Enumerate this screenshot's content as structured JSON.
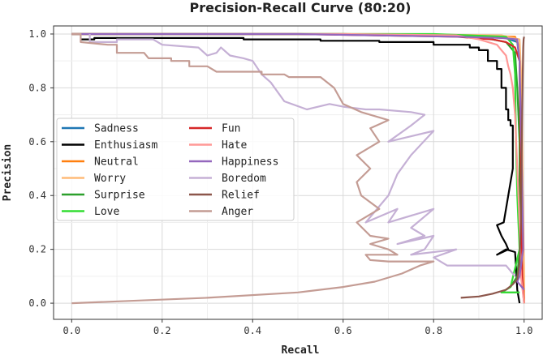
{
  "chart_data": {
    "type": "line",
    "title": "Precision-Recall Curve (80:20)",
    "xlabel": "Recall",
    "ylabel": "Precision",
    "xlim": [
      -0.04,
      1.04
    ],
    "ylim": [
      -0.06,
      1.03
    ],
    "xticks": [
      "0.0",
      "0.2",
      "0.4",
      "0.6",
      "0.8",
      "1.0"
    ],
    "yticks": [
      "0.0",
      "0.2",
      "0.4",
      "0.6",
      "0.8",
      "1.0"
    ],
    "grid": true,
    "legend_position": "center-left",
    "series": [
      {
        "name": "Sadness",
        "color": "#1f77b4",
        "points": [
          [
            0.0,
            1.0
          ],
          [
            0.5,
            1.0
          ],
          [
            0.8,
            0.995
          ],
          [
            0.95,
            0.99
          ],
          [
            0.985,
            0.97
          ],
          [
            0.99,
            0.9
          ],
          [
            0.992,
            0.5
          ],
          [
            0.993,
            0.2
          ],
          [
            0.994,
            0.1
          ],
          [
            1.0,
            0.0
          ]
        ]
      },
      {
        "name": "Enthusiasm",
        "color": "#000000",
        "points": [
          [
            0.02,
            0.98
          ],
          [
            0.05,
            0.98
          ],
          [
            0.05,
            0.985
          ],
          [
            0.38,
            0.985
          ],
          [
            0.38,
            0.98
          ],
          [
            0.55,
            0.98
          ],
          [
            0.55,
            0.975
          ],
          [
            0.68,
            0.975
          ],
          [
            0.68,
            0.97
          ],
          [
            0.8,
            0.97
          ],
          [
            0.8,
            0.96
          ],
          [
            0.88,
            0.96
          ],
          [
            0.88,
            0.95
          ],
          [
            0.9,
            0.95
          ],
          [
            0.9,
            0.94
          ],
          [
            0.92,
            0.94
          ],
          [
            0.92,
            0.9
          ],
          [
            0.94,
            0.9
          ],
          [
            0.94,
            0.87
          ],
          [
            0.95,
            0.87
          ],
          [
            0.95,
            0.8
          ],
          [
            0.96,
            0.8
          ],
          [
            0.96,
            0.72
          ],
          [
            0.965,
            0.72
          ],
          [
            0.965,
            0.68
          ],
          [
            0.97,
            0.68
          ],
          [
            0.97,
            0.66
          ],
          [
            0.975,
            0.66
          ],
          [
            0.975,
            0.5
          ],
          [
            0.97,
            0.45
          ],
          [
            0.965,
            0.4
          ],
          [
            0.96,
            0.35
          ],
          [
            0.955,
            0.3
          ],
          [
            0.94,
            0.29
          ],
          [
            0.95,
            0.25
          ],
          [
            0.96,
            0.22
          ],
          [
            0.965,
            0.2
          ],
          [
            0.94,
            0.18
          ],
          [
            0.96,
            0.2
          ],
          [
            0.98,
            0.19
          ],
          [
            0.985,
            0.05
          ],
          [
            0.99,
            0.0
          ]
        ]
      },
      {
        "name": "Neutral",
        "color": "#ff7f0e",
        "points": [
          [
            0.0,
            1.0
          ],
          [
            0.6,
            1.0
          ],
          [
            0.9,
            0.995
          ],
          [
            0.98,
            0.99
          ],
          [
            0.99,
            0.95
          ],
          [
            0.995,
            0.6
          ],
          [
            0.998,
            0.3
          ],
          [
            1.0,
            0.05
          ],
          [
            1.0,
            0.0
          ]
        ]
      },
      {
        "name": "Worry",
        "color": "#ffbb78",
        "points": [
          [
            0.0,
            1.0
          ],
          [
            0.7,
            1.0
          ],
          [
            0.95,
            0.995
          ],
          [
            0.99,
            0.98
          ],
          [
            0.995,
            0.8
          ],
          [
            0.997,
            0.4
          ],
          [
            0.999,
            0.1
          ],
          [
            1.0,
            0.0
          ]
        ]
      },
      {
        "name": "Surprise",
        "color": "#2ca02c",
        "points": [
          [
            0.0,
            1.0
          ],
          [
            0.6,
            1.0
          ],
          [
            0.9,
            0.99
          ],
          [
            0.96,
            0.97
          ],
          [
            0.98,
            0.93
          ],
          [
            0.985,
            0.8
          ],
          [
            0.99,
            0.6
          ],
          [
            0.99,
            0.2
          ],
          [
            0.985,
            0.1
          ],
          [
            0.97,
            0.06
          ],
          [
            0.95,
            0.04
          ],
          [
            0.99,
            0.04
          ]
        ]
      },
      {
        "name": "Love",
        "color": "#33dd33",
        "points": [
          [
            0.0,
            1.0
          ],
          [
            0.8,
            1.0
          ],
          [
            0.96,
            0.99
          ],
          [
            0.975,
            0.96
          ],
          [
            0.98,
            0.85
          ],
          [
            0.982,
            0.6
          ],
          [
            0.985,
            0.4
          ],
          [
            0.99,
            0.2
          ],
          [
            0.97,
            0.06
          ],
          [
            0.95,
            0.04
          ],
          [
            0.99,
            0.04
          ]
        ]
      },
      {
        "name": "Fun",
        "color": "#d62728",
        "points": [
          [
            0.0,
            1.0
          ],
          [
            0.5,
            1.0
          ],
          [
            0.85,
            0.99
          ],
          [
            0.93,
            0.98
          ],
          [
            0.96,
            0.97
          ],
          [
            0.98,
            0.95
          ],
          [
            0.99,
            0.9
          ],
          [
            0.992,
            0.6
          ],
          [
            0.993,
            0.4
          ],
          [
            0.995,
            0.2
          ],
          [
            0.996,
            0.1
          ],
          [
            1.0,
            0.0
          ]
        ]
      },
      {
        "name": "Hate",
        "color": "#ff9896",
        "points": [
          [
            0.0,
            1.0
          ],
          [
            0.6,
            1.0
          ],
          [
            0.85,
            0.995
          ],
          [
            0.9,
            0.98
          ],
          [
            0.94,
            0.96
          ],
          [
            0.95,
            0.94
          ],
          [
            0.96,
            0.92
          ],
          [
            0.965,
            0.88
          ],
          [
            0.97,
            0.85
          ],
          [
            0.975,
            0.8
          ],
          [
            0.98,
            0.7
          ],
          [
            0.985,
            0.5
          ],
          [
            0.99,
            0.3
          ],
          [
            0.993,
            0.1
          ],
          [
            1.0,
            0.0
          ]
        ]
      },
      {
        "name": "Happiness",
        "color": "#9467bd",
        "points": [
          [
            0.0,
            1.0
          ],
          [
            0.5,
            1.0
          ],
          [
            0.85,
            0.99
          ],
          [
            0.95,
            0.985
          ],
          [
            0.985,
            0.98
          ],
          [
            0.99,
            0.9
          ],
          [
            0.995,
            0.5
          ],
          [
            0.998,
            0.2
          ],
          [
            0.99,
            0.1
          ],
          [
            0.985,
            0.08
          ],
          [
            1.0,
            0.05
          ]
        ]
      },
      {
        "name": "Boredom",
        "color": "#c5b0d5",
        "points": [
          [
            0.04,
            1.0
          ],
          [
            0.04,
            0.97
          ],
          [
            0.1,
            0.97
          ],
          [
            0.1,
            0.98
          ],
          [
            0.18,
            0.98
          ],
          [
            0.2,
            0.96
          ],
          [
            0.28,
            0.95
          ],
          [
            0.3,
            0.92
          ],
          [
            0.32,
            0.93
          ],
          [
            0.33,
            0.95
          ],
          [
            0.35,
            0.92
          ],
          [
            0.38,
            0.91
          ],
          [
            0.4,
            0.9
          ],
          [
            0.42,
            0.85
          ],
          [
            0.44,
            0.82
          ],
          [
            0.47,
            0.75
          ],
          [
            0.52,
            0.72
          ],
          [
            0.57,
            0.74
          ],
          [
            0.6,
            0.73
          ],
          [
            0.65,
            0.72
          ],
          [
            0.68,
            0.72
          ],
          [
            0.75,
            0.71
          ],
          [
            0.78,
            0.7
          ],
          [
            0.75,
            0.66
          ],
          [
            0.7,
            0.6
          ],
          [
            0.8,
            0.64
          ],
          [
            0.75,
            0.55
          ],
          [
            0.72,
            0.48
          ],
          [
            0.7,
            0.4
          ],
          [
            0.65,
            0.3
          ],
          [
            0.72,
            0.35
          ],
          [
            0.7,
            0.3
          ],
          [
            0.8,
            0.35
          ],
          [
            0.75,
            0.28
          ],
          [
            0.78,
            0.25
          ],
          [
            0.72,
            0.22
          ],
          [
            0.8,
            0.25
          ],
          [
            0.78,
            0.2
          ],
          [
            0.75,
            0.18
          ],
          [
            0.85,
            0.2
          ],
          [
            0.8,
            0.17
          ],
          [
            0.83,
            0.14
          ],
          [
            0.9,
            0.14
          ],
          [
            0.96,
            0.14
          ],
          [
            0.98,
            0.1
          ]
        ]
      },
      {
        "name": "Relief",
        "color": "#8c564b",
        "points": [
          [
            0.86,
            0.02
          ],
          [
            0.9,
            0.025
          ],
          [
            0.93,
            0.035
          ],
          [
            0.96,
            0.05
          ],
          [
            0.975,
            0.07
          ],
          [
            0.985,
            0.09
          ],
          [
            0.99,
            0.15
          ],
          [
            0.993,
            0.3
          ],
          [
            0.995,
            0.6
          ],
          [
            0.997,
            0.85
          ],
          [
            0.998,
            0.95
          ],
          [
            0.999,
            0.98
          ],
          [
            1.0,
            0.99
          ]
        ]
      },
      {
        "name": "Anger",
        "color": "#c49c94",
        "points": [
          [
            0.0,
            0.0
          ],
          [
            0.3,
            0.02
          ],
          [
            0.5,
            0.04
          ],
          [
            0.6,
            0.06
          ],
          [
            0.67,
            0.08
          ],
          [
            0.73,
            0.11
          ],
          [
            0.77,
            0.14
          ],
          [
            0.8,
            0.155
          ],
          [
            0.7,
            0.155
          ],
          [
            0.66,
            0.16
          ],
          [
            0.65,
            0.18
          ],
          [
            0.72,
            0.18
          ],
          [
            0.7,
            0.2
          ],
          [
            0.66,
            0.22
          ],
          [
            0.7,
            0.24
          ],
          [
            0.66,
            0.25
          ],
          [
            0.63,
            0.3
          ],
          [
            0.68,
            0.35
          ],
          [
            0.64,
            0.4
          ],
          [
            0.63,
            0.45
          ],
          [
            0.66,
            0.5
          ],
          [
            0.63,
            0.55
          ],
          [
            0.68,
            0.6
          ],
          [
            0.66,
            0.65
          ],
          [
            0.7,
            0.68
          ],
          [
            0.64,
            0.71
          ],
          [
            0.6,
            0.74
          ],
          [
            0.58,
            0.8
          ],
          [
            0.55,
            0.84
          ],
          [
            0.48,
            0.84
          ],
          [
            0.47,
            0.85
          ],
          [
            0.42,
            0.85
          ],
          [
            0.42,
            0.86
          ],
          [
            0.32,
            0.86
          ],
          [
            0.3,
            0.88
          ],
          [
            0.26,
            0.88
          ],
          [
            0.26,
            0.9
          ],
          [
            0.22,
            0.9
          ],
          [
            0.22,
            0.91
          ],
          [
            0.17,
            0.91
          ],
          [
            0.16,
            0.93
          ],
          [
            0.1,
            0.93
          ],
          [
            0.1,
            0.96
          ],
          [
            0.08,
            0.96
          ],
          [
            0.02,
            0.97
          ],
          [
            0.02,
            1.0
          ],
          [
            0.0,
            1.0
          ]
        ]
      }
    ]
  }
}
